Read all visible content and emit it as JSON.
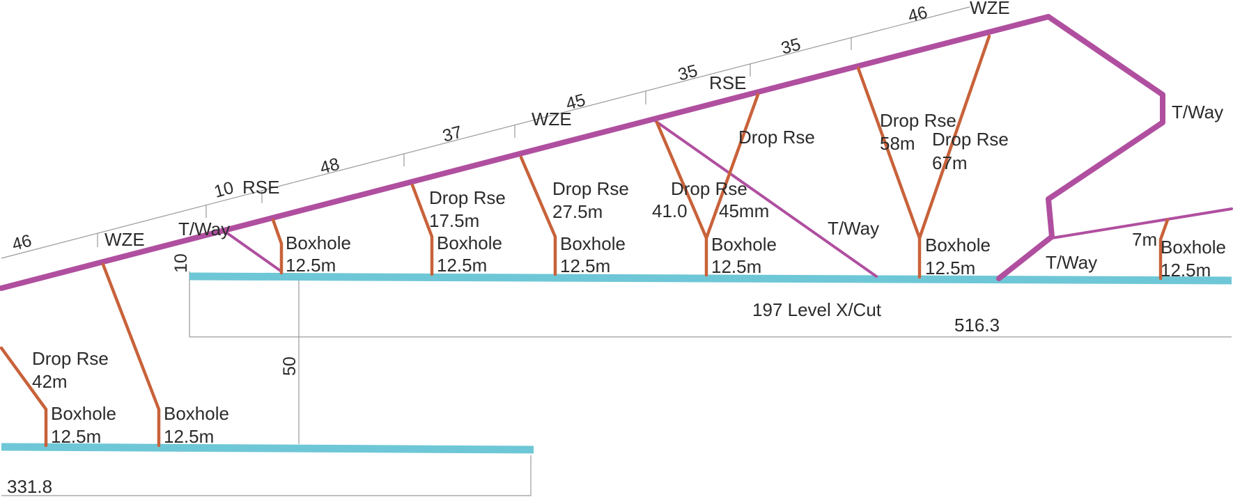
{
  "colors": {
    "ramp": "#b04f9f",
    "raise": "#c8623a",
    "level": "#6ec7d6",
    "dimension": "#9a9a9a",
    "text": "#2b2b2b"
  },
  "labels": {
    "wze_left": "WZE",
    "wze_mid": "WZE",
    "wze_top": "WZE",
    "rse_left": "RSE",
    "rse_mid": "RSE",
    "tway_left": "T/Way",
    "tway_mid": "T/Way",
    "tway_right_top": "T/Way",
    "tway_right_low": "T/Way",
    "level_name": "197 Level X/Cut",
    "boxholes": [
      {
        "name": "Boxhole",
        "len": "12.5m"
      },
      {
        "name": "Boxhole",
        "len": "12.5m"
      },
      {
        "name": "Boxhole",
        "len": "12.5m"
      },
      {
        "name": "Boxhole",
        "len": "12.5m"
      },
      {
        "name": "Boxhole",
        "len": "12.5m"
      },
      {
        "name": "Boxhole",
        "len": "12.5m"
      },
      {
        "name": "Boxhole",
        "len": "12.5m"
      },
      {
        "name": "Boxhole",
        "len": "12.5m"
      }
    ],
    "drop_rse_lower": {
      "name": "Drop Rse",
      "len": "42m"
    },
    "drop_rse_1": {
      "name": "Drop Rse",
      "len": "17.5m"
    },
    "drop_rse_2": {
      "name": "Drop Rse",
      "len": "27.5m"
    },
    "drop_rse_3": {
      "name": "Drop Rse",
      "len": "45mm",
      "alt": "41.0"
    },
    "drop_rse_4": {
      "name": "Drop Rse"
    },
    "drop_rse_5": {
      "name": "Drop Rse",
      "len": "58m"
    },
    "drop_rse_6": {
      "name": "Drop Rse",
      "len": "67m"
    },
    "seven_m": "7m"
  },
  "dimensions": {
    "seg_46_left": "46",
    "seg_10": "10",
    "seg_48": "48",
    "seg_37": "37",
    "seg_45": "45",
    "seg_35a": "35",
    "seg_35b": "35",
    "seg_46_top": "46",
    "vert_10": "10",
    "vert_50": "50",
    "horiz_516": "516.3",
    "horiz_331": "331.8"
  }
}
